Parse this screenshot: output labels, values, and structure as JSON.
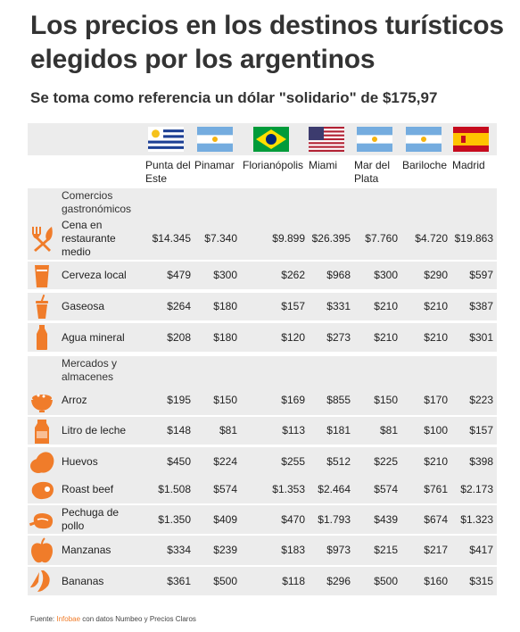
{
  "title": "Los precios en los destinos turísticos elegidos por los argentinos",
  "subtitle": "Se toma como referencia un dólar \"solidario\" de $175,97",
  "accent_color": "#f07c2a",
  "columns": [
    {
      "name": "Punta del\nEste",
      "flag": "uruguay"
    },
    {
      "name": "Pinamar",
      "flag": "argentina"
    },
    {
      "name": "Florianópolis",
      "flag": "brasil"
    },
    {
      "name": "Miami",
      "flag": "usa"
    },
    {
      "name": "Mar del\nPlata",
      "flag": "argentina"
    },
    {
      "name": "Bariloche",
      "flag": "argentina"
    },
    {
      "name": "Madrid",
      "flag": "espana"
    }
  ],
  "sections": [
    {
      "category": "Comercios\ngastronómicos",
      "rows": [
        {
          "item": "Cena en\nrestaurante\nmedio",
          "icon": "utensils-icon",
          "values": [
            "$14.345",
            "$7.340",
            "$9.899",
            "$26.395",
            "$7.760",
            "$4.720",
            "$19.863"
          ]
        },
        {
          "item": "Cerveza local",
          "icon": "beer-icon",
          "values": [
            "$479",
            "$300",
            "$262",
            "$968",
            "$300",
            "$290",
            "$597"
          ]
        },
        {
          "item": "Gaseosa",
          "icon": "soda-cup-icon",
          "values": [
            "$264",
            "$180",
            "$157",
            "$331",
            "$210",
            "$210",
            "$387"
          ]
        },
        {
          "item": "Agua mineral",
          "icon": "water-bottle-icon",
          "values": [
            "$208",
            "$180",
            "$120",
            "$273",
            "$210",
            "$210",
            "$301"
          ]
        }
      ]
    },
    {
      "category": "Mercados y\nalmacenes",
      "rows": [
        {
          "item": "Arroz",
          "icon": "rice-bowl-icon",
          "values": [
            "$195",
            "$150",
            "$169",
            "$855",
            "$150",
            "$170",
            "$223"
          ]
        },
        {
          "item": "Litro de leche",
          "icon": "milk-carton-icon",
          "values": [
            "$148",
            "$81",
            "$113",
            "$181",
            "$81",
            "$100",
            "$157"
          ]
        },
        {
          "item": "Huevos",
          "icon": "eggs-icon",
          "values": [
            "$450",
            "$224",
            "$255",
            "$512",
            "$225",
            "$210",
            "$398"
          ]
        },
        {
          "item": "Roast beef",
          "icon": "steak-icon",
          "values": [
            "$1.508",
            "$574",
            "$1.353",
            "$2.464",
            "$574",
            "$761",
            "$2.173"
          ]
        },
        {
          "item": "Pechuga de\npollo",
          "icon": "chicken-icon",
          "values": [
            "$1.350",
            "$409",
            "$470",
            "$1.793",
            "$439",
            "$674",
            "$1.323"
          ]
        },
        {
          "item": "Manzanas",
          "icon": "apple-icon",
          "values": [
            "$334",
            "$239",
            "$183",
            "$973",
            "$215",
            "$217",
            "$417"
          ]
        },
        {
          "item": "Bananas",
          "icon": "banana-icon",
          "values": [
            "$361",
            "$500",
            "$118",
            "$296",
            "$500",
            "$160",
            "$315"
          ]
        }
      ]
    }
  ],
  "source": {
    "prefix": "Fuente: ",
    "brand": "Infobae",
    "suffix": " con datos Numbeo y Precios Claros"
  },
  "chart_data": {
    "type": "table",
    "title": "Los precios en los destinos turísticos elegidos por los argentinos",
    "subtitle": "Se toma como referencia un dólar \"solidario\" de $175,97",
    "columns": [
      "Punta del Este",
      "Pinamar",
      "Florianópolis",
      "Miami",
      "Mar del Plata",
      "Bariloche",
      "Madrid"
    ],
    "groups": [
      "Comercios gastronómicos",
      "Mercados y almacenes"
    ],
    "rows": [
      {
        "group": "Comercios gastronómicos",
        "item": "Cena en restaurante medio",
        "values": [
          "$14.345",
          "$7.340",
          "$9.899",
          "$26.395",
          "$7.760",
          "$4.720",
          "$19.863"
        ]
      },
      {
        "group": "Comercios gastronómicos",
        "item": "Cerveza local",
        "values": [
          "$479",
          "$300",
          "$262",
          "$968",
          "$300",
          "$290",
          "$597"
        ]
      },
      {
        "group": "Comercios gastronómicos",
        "item": "Gaseosa",
        "values": [
          "$264",
          "$180",
          "$157",
          "$331",
          "$210",
          "$210",
          "$387"
        ]
      },
      {
        "group": "Comercios gastronómicos",
        "item": "Agua mineral",
        "values": [
          "$208",
          "$180",
          "$120",
          "$273",
          "$210",
          "$210",
          "$301"
        ]
      },
      {
        "group": "Mercados y almacenes",
        "item": "Arroz",
        "values": [
          "$195",
          "$150",
          "$169",
          "$855",
          "$150",
          "$170",
          "$223"
        ]
      },
      {
        "group": "Mercados y almacenes",
        "item": "Litro de leche",
        "values": [
          "$148",
          "$81",
          "$113",
          "$181",
          "$81",
          "$100",
          "$157"
        ]
      },
      {
        "group": "Mercados y almacenes",
        "item": "Huevos",
        "values": [
          "$450",
          "$224",
          "$255",
          "$512",
          "$225",
          "$210",
          "$398"
        ]
      },
      {
        "group": "Mercados y almacenes",
        "item": "Roast beef",
        "values": [
          "$1.508",
          "$574",
          "$1.353",
          "$2.464",
          "$574",
          "$761",
          "$2.173"
        ]
      },
      {
        "group": "Mercados y almacenes",
        "item": "Pechuga de pollo",
        "values": [
          "$1.350",
          "$409",
          "$470",
          "$1.793",
          "$439",
          "$674",
          "$1.323"
        ]
      },
      {
        "group": "Mercados y almacenes",
        "item": "Manzanas",
        "values": [
          "$334",
          "$239",
          "$183",
          "$973",
          "$215",
          "$217",
          "$417"
        ]
      },
      {
        "group": "Mercados y almacenes",
        "item": "Bananas",
        "values": [
          "$361",
          "$500",
          "$118",
          "$296",
          "$500",
          "$160",
          "$315"
        ]
      }
    ]
  }
}
